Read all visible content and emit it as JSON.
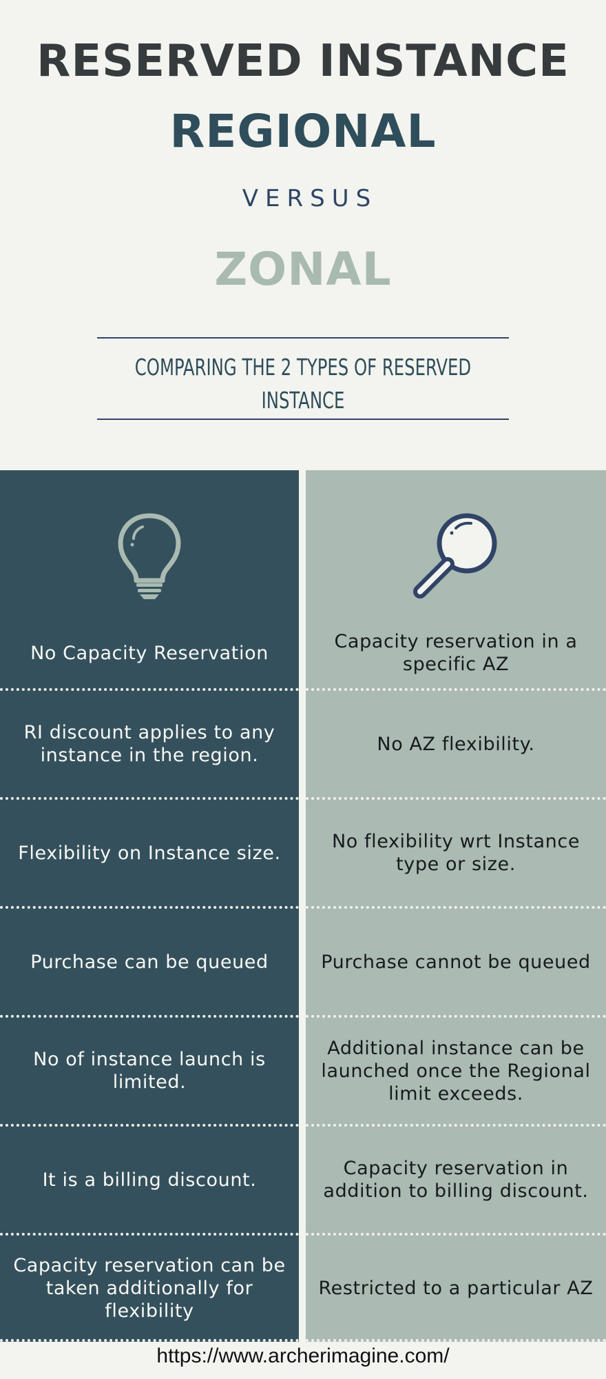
{
  "header": {
    "title_line1": "RESERVED INSTANCE",
    "title_line2": "REGIONAL",
    "title_line3": "VERSUS",
    "title_line4": "ZONAL",
    "subtitle": "COMPARING THE 2 TYPES OF RESERVED INSTANCE"
  },
  "colors": {
    "regional_panel": "#34505c",
    "zonal_panel": "#abbab2",
    "background": "#f3f4ef",
    "title_dark": "#363b3d",
    "regional_title": "#2f4d5b",
    "zonal_title": "#a9bab1",
    "accent_navy": "#2f4466"
  },
  "left_column": {
    "icon": "lightbulb-icon",
    "rows": [
      "No Capacity Reservation",
      "RI discount applies to any instance in the region.",
      "Flexibility on Instance size.",
      "Purchase can be queued",
      "No of instance launch is limited.",
      "It is a billing discount.",
      "Capacity reservation can be taken additionally for flexibility"
    ]
  },
  "right_column": {
    "icon": "magnifying-glass-icon",
    "rows": [
      "Capacity reservation in a specific AZ",
      "No AZ flexibility.",
      "No flexibility wrt Instance type or size.",
      "Purchase cannot be queued",
      "Additional instance can be launched once the Regional limit exceeds.",
      "Capacity reservation in addition to billing discount.",
      "Restricted to a particular AZ"
    ]
  },
  "footer": {
    "url": "https://www.archerimagine.com/"
  }
}
